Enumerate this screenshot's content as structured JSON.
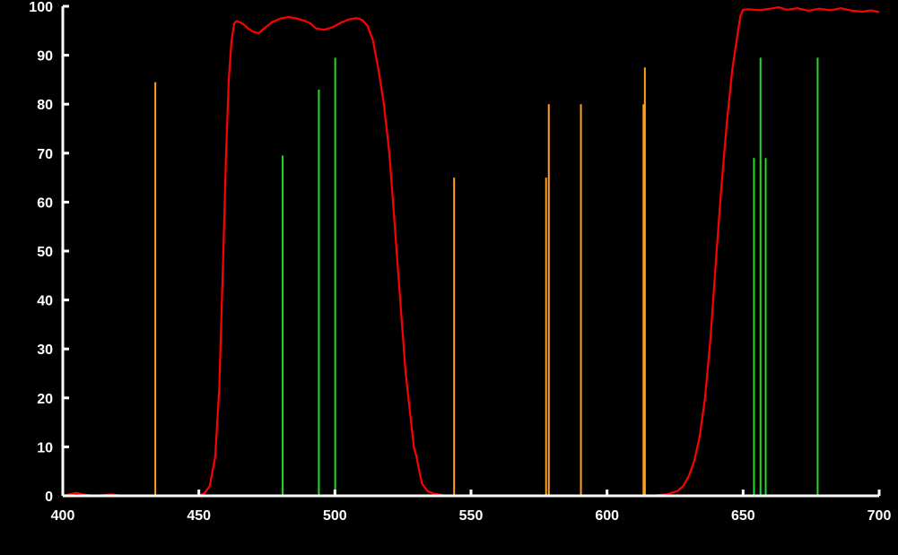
{
  "chart_data": {
    "type": "line",
    "title": "",
    "xlabel": "",
    "ylabel": "",
    "xlim": [
      400,
      700
    ],
    "ylim": [
      0,
      100
    ],
    "x_ticks": [
      400,
      450,
      500,
      550,
      600,
      650,
      700
    ],
    "y_ticks": [
      0,
      10,
      20,
      30,
      40,
      50,
      60,
      70,
      80,
      90,
      100
    ],
    "grid": false,
    "colors": {
      "background": "#000000",
      "axes": "#ffffff",
      "transmission": "#ff0000",
      "orange_lines": "#ffa020",
      "green_lines": "#22dd22"
    },
    "series": [
      {
        "type": "line",
        "color": "#ff0000",
        "points": [
          [
            400,
            0
          ],
          [
            405,
            0.6
          ],
          [
            408,
            0.2
          ],
          [
            412,
            0
          ],
          [
            418,
            0.3
          ],
          [
            422,
            0
          ],
          [
            440,
            0
          ],
          [
            450,
            0
          ],
          [
            452,
            0.5
          ],
          [
            454,
            2
          ],
          [
            456,
            8
          ],
          [
            457.5,
            22
          ],
          [
            459,
            50
          ],
          [
            460,
            70
          ],
          [
            461,
            85
          ],
          [
            462,
            93
          ],
          [
            463,
            96.5
          ],
          [
            464,
            97
          ],
          [
            466,
            96.5
          ],
          [
            468,
            95.5
          ],
          [
            470,
            94.8
          ],
          [
            472,
            94.5
          ],
          [
            474,
            95.5
          ],
          [
            477,
            96.8
          ],
          [
            480,
            97.5
          ],
          [
            483,
            97.8
          ],
          [
            486,
            97.5
          ],
          [
            489,
            97
          ],
          [
            491,
            96.5
          ],
          [
            493,
            95.5
          ],
          [
            496,
            95.2
          ],
          [
            499,
            95.7
          ],
          [
            502,
            96.6
          ],
          [
            505,
            97.3
          ],
          [
            508,
            97.6
          ],
          [
            510,
            97.2
          ],
          [
            512,
            96
          ],
          [
            514,
            93
          ],
          [
            516,
            87
          ],
          [
            518,
            80
          ],
          [
            520,
            70
          ],
          [
            522,
            55
          ],
          [
            524,
            40
          ],
          [
            526,
            25
          ],
          [
            528,
            15
          ],
          [
            529,
            10
          ],
          [
            530,
            8
          ],
          [
            531,
            5
          ],
          [
            532,
            2.5
          ],
          [
            534,
            1
          ],
          [
            536,
            0.5
          ],
          [
            540,
            0.1
          ],
          [
            545,
            0
          ],
          [
            555,
            0
          ],
          [
            600,
            0
          ],
          [
            614,
            0
          ],
          [
            618,
            0.1
          ],
          [
            622,
            0.3
          ],
          [
            626,
            1
          ],
          [
            628,
            2
          ],
          [
            630,
            4
          ],
          [
            632,
            7
          ],
          [
            634,
            12
          ],
          [
            636,
            20
          ],
          [
            638,
            32
          ],
          [
            640,
            48
          ],
          [
            642,
            63
          ],
          [
            644,
            76
          ],
          [
            646,
            87
          ],
          [
            648,
            94.5
          ],
          [
            649,
            98
          ],
          [
            650,
            99.3
          ],
          [
            652,
            99.4
          ],
          [
            656,
            99.2
          ],
          [
            660,
            99.5
          ],
          [
            663,
            99.8
          ],
          [
            666,
            99.3
          ],
          [
            670,
            99.6
          ],
          [
            674,
            99.1
          ],
          [
            678,
            99.5
          ],
          [
            682,
            99.2
          ],
          [
            686,
            99.6
          ],
          [
            690,
            99.1
          ],
          [
            694,
            98.9
          ],
          [
            697,
            99.2
          ],
          [
            700,
            98.8
          ]
        ]
      }
    ],
    "vertical_lines": [
      {
        "x": 434,
        "y": 84.5,
        "color": "#ffa020"
      },
      {
        "x": 543.8,
        "y": 65,
        "color": "#ffa020"
      },
      {
        "x": 577.6,
        "y": 65,
        "color": "#ffa020"
      },
      {
        "x": 578.6,
        "y": 80,
        "color": "#ffa020"
      },
      {
        "x": 590.4,
        "y": 80,
        "color": "#ffa020"
      },
      {
        "x": 613.4,
        "y": 80,
        "color": "#ffa020"
      },
      {
        "x": 613.9,
        "y": 87.5,
        "color": "#ffa020"
      },
      {
        "x": 480.8,
        "y": 69.5,
        "color": "#22dd22"
      },
      {
        "x": 494.1,
        "y": 83,
        "color": "#22dd22"
      },
      {
        "x": 500.1,
        "y": 89.5,
        "color": "#22dd22"
      },
      {
        "x": 654,
        "y": 69,
        "color": "#22dd22"
      },
      {
        "x": 656.4,
        "y": 89.5,
        "color": "#22dd22"
      },
      {
        "x": 658.3,
        "y": 69,
        "color": "#22dd22"
      },
      {
        "x": 677.4,
        "y": 89.5,
        "color": "#22dd22"
      }
    ]
  }
}
